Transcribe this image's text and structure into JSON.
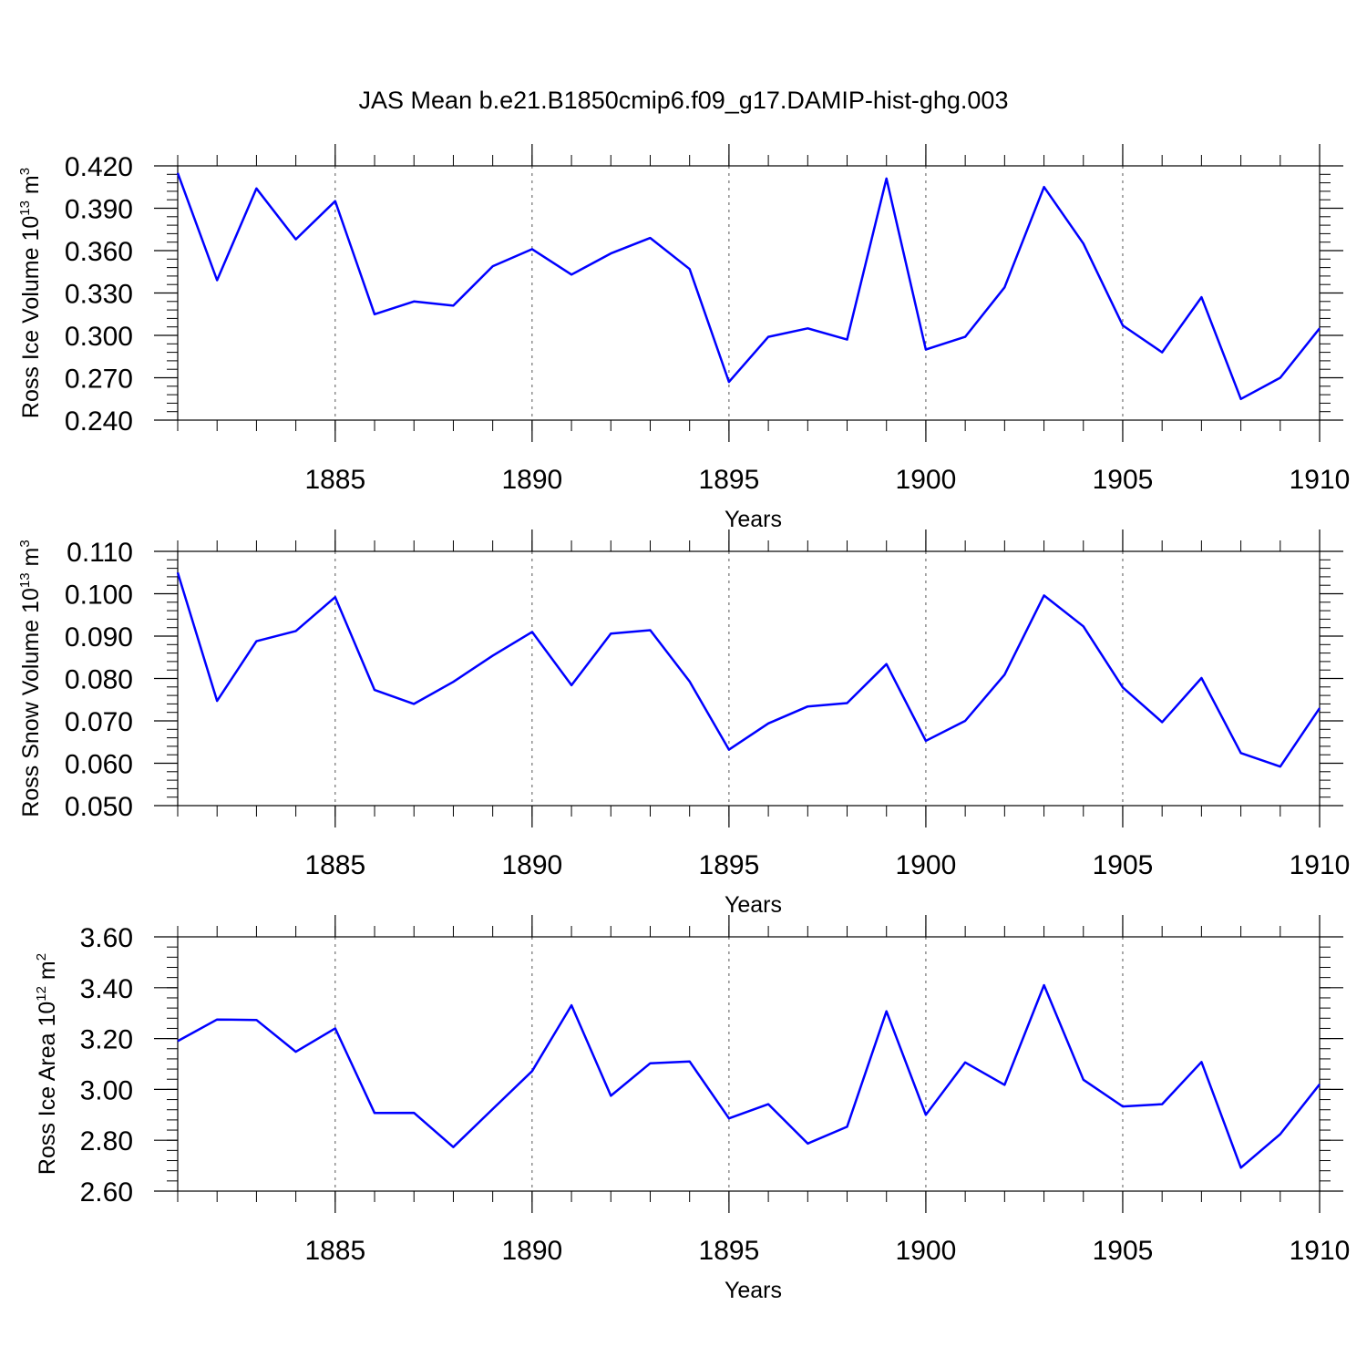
{
  "figure_title": "JAS Mean b.e21.B1850cmip6.f09_g17.DAMIP-hist-ghg.003",
  "chart_data": [
    {
      "type": "line",
      "title": "",
      "xlabel": "Years",
      "ylabel_base": "Ross Ice Volume 10",
      "ylabel_exp": "13",
      "ylabel_unit": " m",
      "ylabel_unit_exp": "3",
      "xlim": [
        1881,
        1910
      ],
      "ylim": [
        0.24,
        0.42
      ],
      "x_ticks": [
        1885,
        1890,
        1895,
        1900,
        1905,
        1910
      ],
      "x_tick_labels": [
        "1885",
        "1890",
        "1895",
        "1900",
        "1905",
        "1910"
      ],
      "y_ticks": [
        0.24,
        0.27,
        0.3,
        0.33,
        0.36,
        0.39,
        0.42
      ],
      "y_tick_labels": [
        "0.240",
        "0.270",
        "0.300",
        "0.330",
        "0.360",
        "0.390",
        "0.420"
      ],
      "y_minor_step": 0.006,
      "grid": "vertical dashed at major x ticks",
      "line_color": "#0000ff",
      "x": [
        1881,
        1882,
        1883,
        1884,
        1885,
        1886,
        1887,
        1888,
        1889,
        1890,
        1891,
        1892,
        1893,
        1894,
        1895,
        1896,
        1897,
        1898,
        1899,
        1900,
        1901,
        1902,
        1903,
        1904,
        1905,
        1906,
        1907,
        1908,
        1909,
        1910
      ],
      "values": [
        0.415,
        0.339,
        0.404,
        0.368,
        0.395,
        0.315,
        0.324,
        0.321,
        0.349,
        0.361,
        0.343,
        0.358,
        0.369,
        0.347,
        0.267,
        0.299,
        0.305,
        0.297,
        0.411,
        0.29,
        0.299,
        0.334,
        0.405,
        0.365,
        0.307,
        0.288,
        0.327,
        0.255,
        0.27,
        0.305
      ]
    },
    {
      "type": "line",
      "title": "",
      "xlabel": "Years",
      "ylabel_base": "Ross Snow Volume 10",
      "ylabel_exp": "13",
      "ylabel_unit": " m",
      "ylabel_unit_exp": "3",
      "xlim": [
        1881,
        1910
      ],
      "ylim": [
        0.05,
        0.11
      ],
      "x_ticks": [
        1885,
        1890,
        1895,
        1900,
        1905,
        1910
      ],
      "x_tick_labels": [
        "1885",
        "1890",
        "1895",
        "1900",
        "1905",
        "1910"
      ],
      "y_ticks": [
        0.05,
        0.06,
        0.07,
        0.08,
        0.09,
        0.1,
        0.11
      ],
      "y_tick_labels": [
        "0.050",
        "0.060",
        "0.070",
        "0.080",
        "0.090",
        "0.100",
        "0.110"
      ],
      "y_minor_step": 0.002,
      "grid": "vertical dashed at major x ticks",
      "line_color": "#0000ff",
      "x": [
        1881,
        1882,
        1883,
        1884,
        1885,
        1886,
        1887,
        1888,
        1889,
        1890,
        1891,
        1892,
        1893,
        1894,
        1895,
        1896,
        1897,
        1898,
        1899,
        1900,
        1901,
        1902,
        1903,
        1904,
        1905,
        1906,
        1907,
        1908,
        1909,
        1910
      ],
      "values": [
        0.105,
        0.0747,
        0.0888,
        0.0912,
        0.0992,
        0.0773,
        0.074,
        0.0792,
        0.0854,
        0.091,
        0.0784,
        0.0906,
        0.0914,
        0.0793,
        0.0632,
        0.0694,
        0.0734,
        0.0742,
        0.0834,
        0.0653,
        0.07,
        0.0809,
        0.0996,
        0.0923,
        0.0779,
        0.0697,
        0.0801,
        0.0624,
        0.0592,
        0.073
      ]
    },
    {
      "type": "line",
      "title": "",
      "xlabel": "Years",
      "ylabel_base": "Ross Ice Area 10",
      "ylabel_exp": "12",
      "ylabel_unit": " m",
      "ylabel_unit_exp": "2",
      "xlim": [
        1881,
        1910
      ],
      "ylim": [
        2.6,
        3.6
      ],
      "x_ticks": [
        1885,
        1890,
        1895,
        1900,
        1905,
        1910
      ],
      "x_tick_labels": [
        "1885",
        "1890",
        "1895",
        "1900",
        "1905",
        "1910"
      ],
      "y_ticks": [
        2.6,
        2.8,
        3.0,
        3.2,
        3.4,
        3.6
      ],
      "y_tick_labels": [
        "2.60",
        "2.80",
        "3.00",
        "3.20",
        "3.40",
        "3.60"
      ],
      "y_minor_step": 0.04,
      "grid": "vertical dashed at major x ticks",
      "line_color": "#0000ff",
      "x": [
        1881,
        1882,
        1883,
        1884,
        1885,
        1886,
        1887,
        1888,
        1889,
        1890,
        1891,
        1892,
        1893,
        1894,
        1895,
        1896,
        1897,
        1898,
        1899,
        1900,
        1901,
        1902,
        1903,
        1904,
        1905,
        1906,
        1907,
        1908,
        1909,
        1910
      ],
      "values": [
        3.19,
        3.275,
        3.273,
        3.148,
        3.24,
        2.907,
        2.908,
        2.773,
        2.923,
        3.072,
        3.331,
        2.975,
        3.103,
        3.11,
        2.886,
        2.942,
        2.787,
        2.853,
        3.307,
        2.9,
        3.106,
        3.018,
        3.41,
        3.038,
        2.933,
        2.942,
        3.108,
        2.692,
        2.824,
        3.02
      ]
    }
  ]
}
